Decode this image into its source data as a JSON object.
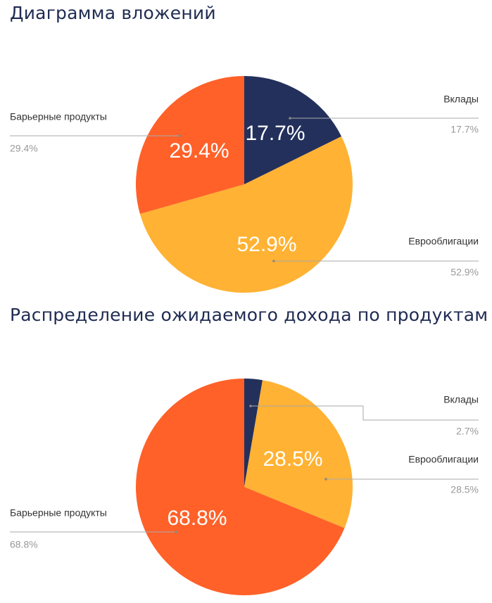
{
  "chart_data": [
    {
      "type": "pie",
      "title": "Диаграмма вложений",
      "slices": [
        {
          "name": "Вклады",
          "value": 17.7,
          "label": "17.7%",
          "color": "#23305c",
          "side": "right"
        },
        {
          "name": "Еврооблигации",
          "value": 52.9,
          "label": "52.9%",
          "color": "#ffb233",
          "side": "right"
        },
        {
          "name": "Барьерные продукты",
          "value": 29.4,
          "label": "29.4%",
          "color": "#ff6129",
          "side": "left"
        }
      ],
      "legend": "callouts"
    },
    {
      "type": "pie",
      "title": "Распределение ожидаемого дохода по продуктам",
      "slices": [
        {
          "name": "Вклады",
          "value": 2.7,
          "label": "2.7%",
          "color": "#23305c",
          "side": "right",
          "show_inside": false
        },
        {
          "name": "Еврооблигации",
          "value": 28.5,
          "label": "28.5%",
          "color": "#ffb233",
          "side": "right"
        },
        {
          "name": "Барьерные продукты",
          "value": 68.8,
          "label": "68.8%",
          "color": "#ff6129",
          "side": "left"
        }
      ],
      "legend": "callouts"
    }
  ]
}
